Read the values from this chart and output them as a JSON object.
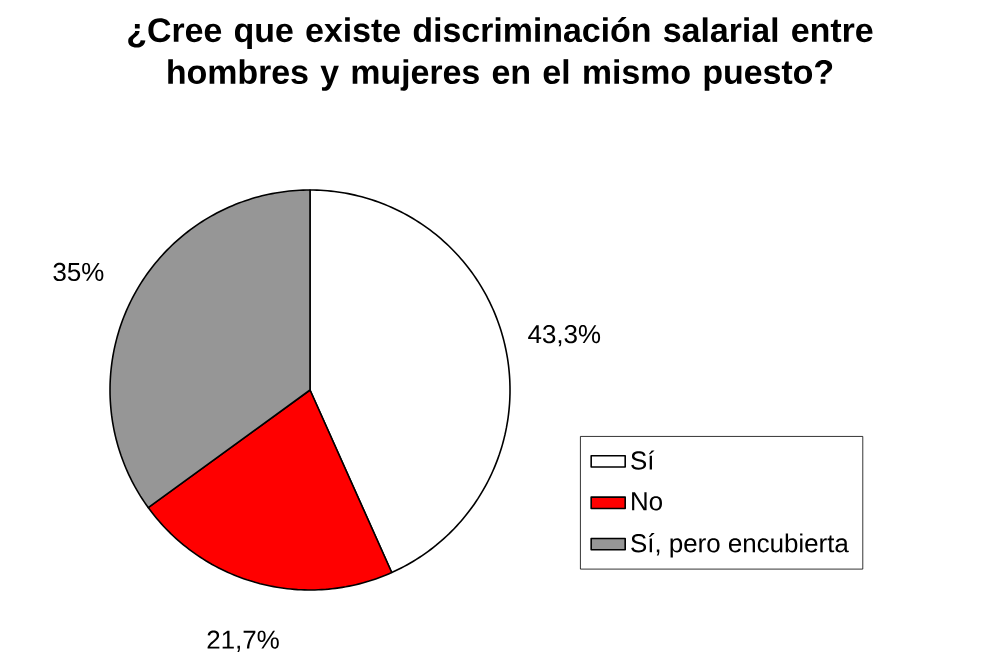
{
  "chart_data": {
    "type": "pie",
    "title": "¿Cree que existe discriminación salarial entre hombres y mujeres en el mismo puesto?",
    "categories": [
      "Sí",
      "No",
      "Sí, pero encubierta"
    ],
    "values": [
      43.3,
      21.7,
      35
    ],
    "value_labels": [
      "43,3%",
      "21,7%",
      "35%"
    ],
    "colors": [
      "#ffffff",
      "#ff0000",
      "#969696"
    ],
    "legend": "right"
  }
}
